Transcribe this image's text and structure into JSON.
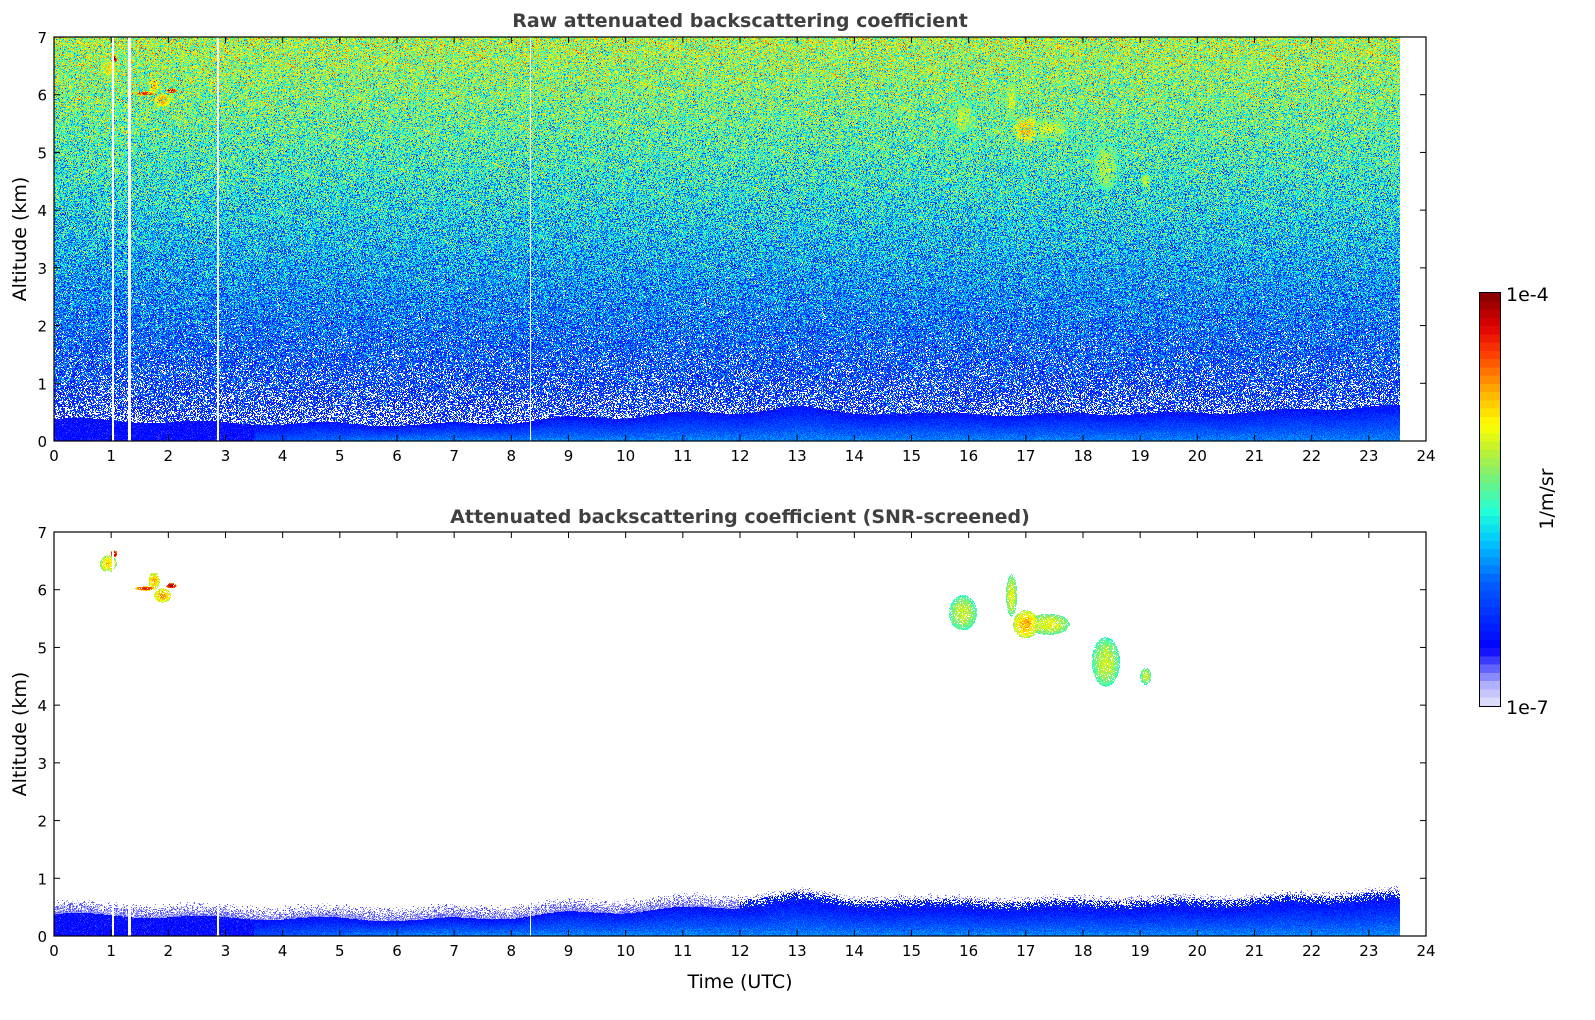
{
  "chart_data": [
    {
      "type": "heatmap",
      "title": "Raw attenuated backscattering coefficient",
      "xlabel": "",
      "ylabel": "Altitude (km)",
      "xlim": [
        0,
        24
      ],
      "ylim": [
        0,
        7
      ],
      "xticks": [
        "0",
        "1",
        "2",
        "3",
        "4",
        "5",
        "6",
        "7",
        "8",
        "9",
        "10",
        "11",
        "12",
        "13",
        "14",
        "15",
        "16",
        "17",
        "18",
        "19",
        "20",
        "21",
        "22",
        "23",
        "24"
      ],
      "yticks": [
        "0",
        "1",
        "2",
        "3",
        "4",
        "5",
        "6",
        "7"
      ],
      "screened": false
    },
    {
      "type": "heatmap",
      "title": "Attenuated backscattering coefficient (SNR-screened)",
      "xlabel": "Time (UTC)",
      "ylabel": "Altitude (km)",
      "xlim": [
        0,
        24
      ],
      "ylim": [
        0,
        7
      ],
      "xticks": [
        "0",
        "1",
        "2",
        "3",
        "4",
        "5",
        "6",
        "7",
        "8",
        "9",
        "10",
        "11",
        "12",
        "13",
        "14",
        "15",
        "16",
        "17",
        "18",
        "19",
        "20",
        "21",
        "22",
        "23",
        "24"
      ],
      "yticks": [
        "0",
        "1",
        "2",
        "3",
        "4",
        "5",
        "6",
        "7"
      ],
      "screened": true
    }
  ],
  "shared": {
    "data_end_time": 23.55,
    "data_gaps_utc": [
      1.03,
      1.3,
      1.33,
      2.87,
      8.33
    ],
    "boundary_layer_top_km": {
      "time": [
        0,
        2,
        4,
        5,
        6.5,
        7,
        8,
        9,
        10,
        11,
        12,
        13,
        14,
        15,
        16,
        17,
        18,
        19,
        20,
        21,
        22,
        23,
        23.55
      ],
      "height": [
        0.38,
        0.33,
        0.3,
        0.3,
        0.27,
        0.3,
        0.32,
        0.4,
        0.42,
        0.48,
        0.5,
        0.58,
        0.5,
        0.45,
        0.5,
        0.42,
        0.5,
        0.45,
        0.5,
        0.5,
        0.55,
        0.6,
        0.6
      ]
    },
    "cloud_features": [
      {
        "time": 0.95,
        "alt": 6.45,
        "dt": 0.12,
        "dz": 0.12,
        "level": 0.72
      },
      {
        "time": 1.05,
        "alt": 6.62,
        "dt": 0.05,
        "dz": 0.05,
        "level": 0.98
      },
      {
        "time": 1.75,
        "alt": 6.15,
        "dt": 0.08,
        "dz": 0.12,
        "level": 0.76
      },
      {
        "time": 1.9,
        "alt": 5.9,
        "dt": 0.12,
        "dz": 0.1,
        "level": 0.78
      },
      {
        "time": 1.6,
        "alt": 6.02,
        "dt": 0.15,
        "dz": 0.03,
        "level": 0.9
      },
      {
        "time": 2.05,
        "alt": 6.07,
        "dt": 0.08,
        "dz": 0.04,
        "level": 0.97
      },
      {
        "time": 15.9,
        "alt": 5.6,
        "dt": 0.2,
        "dz": 0.25,
        "level": 0.63
      },
      {
        "time": 16.75,
        "alt": 5.9,
        "dt": 0.08,
        "dz": 0.3,
        "level": 0.66
      },
      {
        "time": 17.0,
        "alt": 5.4,
        "dt": 0.18,
        "dz": 0.2,
        "level": 0.76
      },
      {
        "time": 17.4,
        "alt": 5.4,
        "dt": 0.3,
        "dz": 0.15,
        "level": 0.66
      },
      {
        "time": 18.4,
        "alt": 4.75,
        "dt": 0.2,
        "dz": 0.35,
        "level": 0.63
      },
      {
        "time": 19.1,
        "alt": 4.5,
        "dt": 0.08,
        "dz": 0.12,
        "level": 0.63
      }
    ]
  },
  "colorbar": {
    "label": "1/m/sr",
    "min_label": "1e-7",
    "max_label": "1e-4",
    "min": 1e-07,
    "max": 0.0001,
    "scale": "log",
    "colormap": [
      "#e6e6fa",
      "#b0b0ff",
      "#5050ff",
      "#0000ff",
      "#0060ff",
      "#00c8ff",
      "#20ffd8",
      "#80f070",
      "#c0f030",
      "#ffff00",
      "#ffb000",
      "#ff4000",
      "#e00000",
      "#800000"
    ]
  }
}
